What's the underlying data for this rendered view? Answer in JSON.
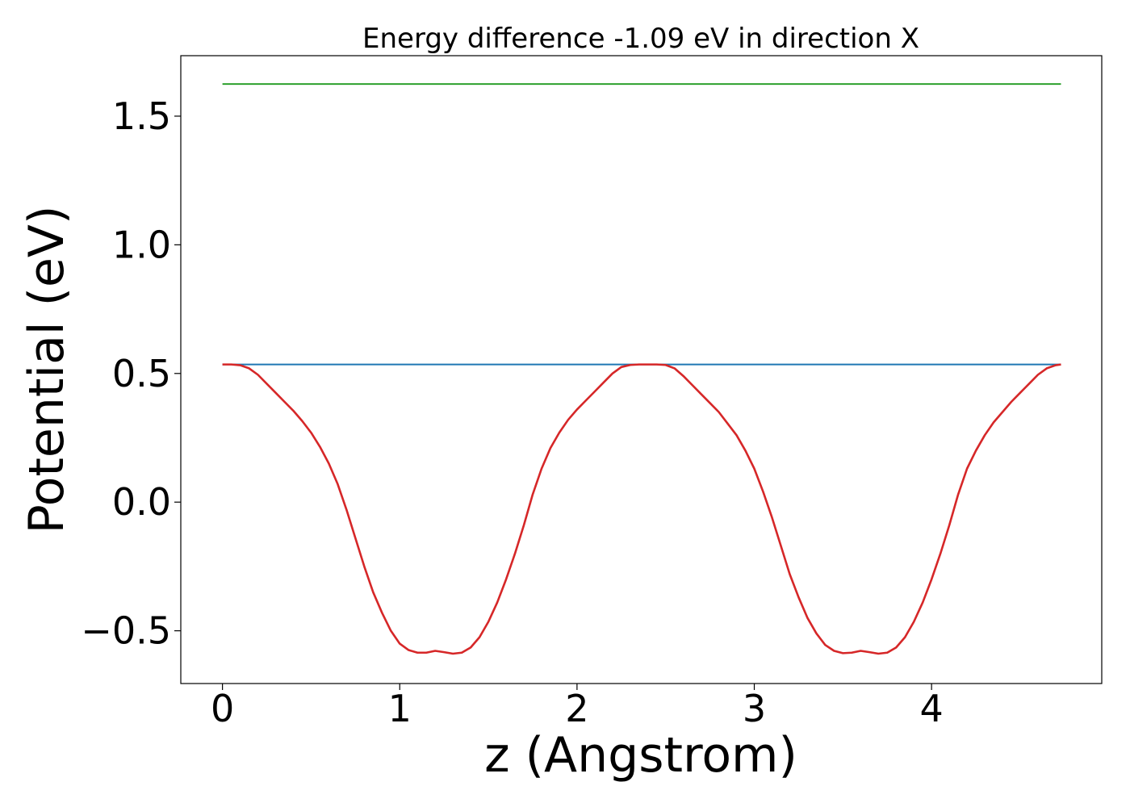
{
  "chart_data": {
    "type": "line",
    "title": "Energy difference -1.09 eV in direction X",
    "xlabel": "z (Angstrom)",
    "ylabel": "Potential (eV)",
    "xlim": [
      -0.235,
      4.96
    ],
    "ylim": [
      -0.705,
      1.735
    ],
    "xticks": [
      0,
      1,
      2,
      3,
      4
    ],
    "xtick_labels": [
      "0",
      "1",
      "2",
      "3",
      "4"
    ],
    "yticks": [
      -0.5,
      0.0,
      0.5,
      1.0,
      1.5
    ],
    "ytick_labels": [
      "−0.5",
      "0.0",
      "0.5",
      "1.0",
      "1.5"
    ],
    "grid": false,
    "series": [
      {
        "color": "#2ca02c",
        "x": [
          0,
          4.73
        ],
        "y": [
          1.625,
          1.625
        ]
      },
      {
        "color": "#1f77b4",
        "x": [
          0,
          4.73
        ],
        "y": [
          0.535,
          0.535
        ]
      },
      {
        "color": "#d62728",
        "x": [
          0,
          0.05,
          0.1,
          0.15,
          0.2,
          0.25,
          0.3,
          0.35,
          0.4,
          0.45,
          0.5,
          0.55,
          0.6,
          0.65,
          0.7,
          0.75,
          0.8,
          0.85,
          0.9,
          0.95,
          1.0,
          1.05,
          1.1,
          1.15,
          1.2,
          1.25,
          1.3,
          1.35,
          1.4,
          1.45,
          1.5,
          1.55,
          1.6,
          1.65,
          1.7,
          1.75,
          1.8,
          1.85,
          1.9,
          1.95,
          2.0,
          2.05,
          2.1,
          2.15,
          2.2,
          2.25,
          2.3,
          2.35,
          2.4,
          2.45,
          2.5,
          2.55,
          2.6,
          2.65,
          2.7,
          2.75,
          2.8,
          2.85,
          2.9,
          2.95,
          3.0,
          3.05,
          3.1,
          3.15,
          3.2,
          3.25,
          3.3,
          3.35,
          3.4,
          3.45,
          3.5,
          3.55,
          3.6,
          3.65,
          3.7,
          3.75,
          3.8,
          3.85,
          3.9,
          3.95,
          4.0,
          4.05,
          4.1,
          4.15,
          4.2,
          4.25,
          4.3,
          4.35,
          4.4,
          4.45,
          4.5,
          4.55,
          4.6,
          4.65,
          4.7,
          4.73
        ],
        "y": [
          0.535,
          0.535,
          0.532,
          0.52,
          0.495,
          0.46,
          0.425,
          0.39,
          0.355,
          0.315,
          0.27,
          0.215,
          0.15,
          0.07,
          -0.03,
          -0.14,
          -0.25,
          -0.35,
          -0.43,
          -0.5,
          -0.55,
          -0.575,
          -0.585,
          -0.585,
          -0.578,
          -0.583,
          -0.589,
          -0.585,
          -0.565,
          -0.525,
          -0.465,
          -0.39,
          -0.3,
          -0.2,
          -0.09,
          0.03,
          0.13,
          0.21,
          0.27,
          0.32,
          0.36,
          0.395,
          0.43,
          0.465,
          0.5,
          0.525,
          0.533,
          0.535,
          0.535,
          0.535,
          0.533,
          0.52,
          0.49,
          0.455,
          0.42,
          0.385,
          0.35,
          0.305,
          0.26,
          0.2,
          0.13,
          0.04,
          -0.06,
          -0.17,
          -0.28,
          -0.37,
          -0.45,
          -0.51,
          -0.555,
          -0.578,
          -0.587,
          -0.585,
          -0.578,
          -0.583,
          -0.589,
          -0.585,
          -0.565,
          -0.525,
          -0.465,
          -0.39,
          -0.3,
          -0.2,
          -0.09,
          0.03,
          0.13,
          0.2,
          0.26,
          0.31,
          0.35,
          0.39,
          0.425,
          0.46,
          0.495,
          0.52,
          0.532,
          0.535
        ]
      }
    ]
  }
}
